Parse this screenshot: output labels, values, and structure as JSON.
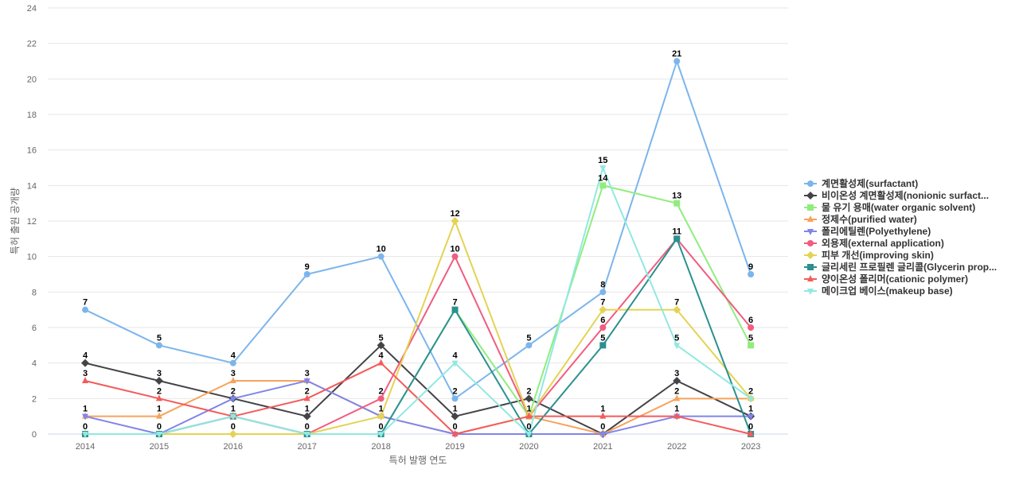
{
  "chart_data": {
    "type": "line",
    "title": "",
    "xlabel": "특허 발행 연도",
    "ylabel": "특허 출원 공개량",
    "x": [
      "2014",
      "2015",
      "2016",
      "2017",
      "2018",
      "2019",
      "2020",
      "2021",
      "2022",
      "2023"
    ],
    "ylim": [
      0,
      24
    ],
    "yticks": [
      0,
      2,
      4,
      6,
      8,
      10,
      12,
      14,
      16,
      18,
      20,
      22,
      24
    ],
    "grid": true,
    "legend_position": "right",
    "series": [
      {
        "name": "계면활성제(surfactant)",
        "color": "#7cb5ec",
        "marker": "circle",
        "values": [
          7,
          5,
          4,
          9,
          10,
          2,
          5,
          8,
          21,
          9
        ]
      },
      {
        "name": "비이온성 계면활성제(nonionic surfact...",
        "color": "#434348",
        "marker": "diamond",
        "values": [
          4,
          3,
          2,
          1,
          5,
          1,
          2,
          0,
          3,
          1
        ]
      },
      {
        "name": "물 유기 용매(water organic solvent)",
        "color": "#90ed7d",
        "marker": "square",
        "values": [
          0,
          0,
          1,
          0,
          0,
          7,
          1,
          14,
          13,
          5
        ]
      },
      {
        "name": "정제수(purified water)",
        "color": "#f7a35c",
        "marker": "triangle",
        "values": [
          1,
          1,
          3,
          3,
          1,
          0,
          1,
          0,
          2,
          2
        ]
      },
      {
        "name": "폴리에틸렌(Polyethylene)",
        "color": "#8085e9",
        "marker": "triangle-down",
        "values": [
          1,
          0,
          2,
          3,
          1,
          0,
          0,
          0,
          1,
          1
        ]
      },
      {
        "name": "외용제(external application)",
        "color": "#f15c80",
        "marker": "circle",
        "values": [
          0,
          0,
          1,
          0,
          2,
          10,
          1,
          6,
          11,
          6
        ]
      },
      {
        "name": "피부 개선(improving skin)",
        "color": "#e4d354",
        "marker": "diamond",
        "values": [
          0,
          0,
          0,
          0,
          1,
          12,
          1,
          7,
          7,
          2
        ]
      },
      {
        "name": "글리세린 프로필렌 글리콜(Glycerin prop...",
        "color": "#2b908f",
        "marker": "square",
        "values": [
          0,
          0,
          1,
          0,
          0,
          7,
          0,
          5,
          11,
          0
        ]
      },
      {
        "name": "양이온성 폴리머(cationic polymer)",
        "color": "#f45b5b",
        "marker": "triangle",
        "values": [
          3,
          2,
          1,
          2,
          4,
          0,
          1,
          1,
          1,
          0
        ]
      },
      {
        "name": "메이크업 베이스(makeup base)",
        "color": "#91e8e1",
        "marker": "triangle-down",
        "values": [
          0,
          0,
          1,
          0,
          0,
          4,
          0,
          15,
          5,
          2
        ]
      }
    ],
    "data_labels": [
      {
        "x": "2014",
        "value": 7
      },
      {
        "x": "2014",
        "value": 4
      },
      {
        "x": "2014",
        "value": 3
      },
      {
        "x": "2014",
        "value": 1
      },
      {
        "x": "2014",
        "value": 0
      },
      {
        "x": "2015",
        "value": 5
      },
      {
        "x": "2015",
        "value": 3
      },
      {
        "x": "2015",
        "value": 2
      },
      {
        "x": "2015",
        "value": 1
      },
      {
        "x": "2015",
        "value": 0
      },
      {
        "x": "2016",
        "value": 4
      },
      {
        "x": "2016",
        "value": 3
      },
      {
        "x": "2016",
        "value": 2
      },
      {
        "x": "2016",
        "value": 1
      },
      {
        "x": "2016",
        "value": 0
      },
      {
        "x": "2017",
        "value": 9
      },
      {
        "x": "2017",
        "value": 3
      },
      {
        "x": "2017",
        "value": 2
      },
      {
        "x": "2017",
        "value": 1
      },
      {
        "x": "2017",
        "value": 0
      },
      {
        "x": "2018",
        "value": 10
      },
      {
        "x": "2018",
        "value": 5
      },
      {
        "x": "2018",
        "value": 4
      },
      {
        "x": "2018",
        "value": 2
      },
      {
        "x": "2018",
        "value": 1
      },
      {
        "x": "2018",
        "value": 0
      },
      {
        "x": "2019",
        "value": 12
      },
      {
        "x": "2019",
        "value": 10
      },
      {
        "x": "2019",
        "value": 7
      },
      {
        "x": "2019",
        "value": 4
      },
      {
        "x": "2019",
        "value": 2
      },
      {
        "x": "2019",
        "value": 1
      },
      {
        "x": "2019",
        "value": 0
      },
      {
        "x": "2020",
        "value": 5
      },
      {
        "x": "2020",
        "value": 2
      },
      {
        "x": "2020",
        "value": 1
      },
      {
        "x": "2020",
        "value": 0
      },
      {
        "x": "2021",
        "value": 15
      },
      {
        "x": "2021",
        "value": 14
      },
      {
        "x": "2021",
        "value": 8
      },
      {
        "x": "2021",
        "value": 7
      },
      {
        "x": "2021",
        "value": 6
      },
      {
        "x": "2021",
        "value": 5
      },
      {
        "x": "2021",
        "value": 1
      },
      {
        "x": "2021",
        "value": 0
      },
      {
        "x": "2022",
        "value": 21
      },
      {
        "x": "2022",
        "value": 13
      },
      {
        "x": "2022",
        "value": 11
      },
      {
        "x": "2022",
        "value": 7
      },
      {
        "x": "2022",
        "value": 5
      },
      {
        "x": "2022",
        "value": 3
      },
      {
        "x": "2022",
        "value": 2
      },
      {
        "x": "2022",
        "value": 1
      },
      {
        "x": "2023",
        "value": 9
      },
      {
        "x": "2023",
        "value": 6
      },
      {
        "x": "2023",
        "value": 5
      },
      {
        "x": "2023",
        "value": 2
      },
      {
        "x": "2023",
        "value": 1
      },
      {
        "x": "2023",
        "value": 0
      }
    ]
  }
}
